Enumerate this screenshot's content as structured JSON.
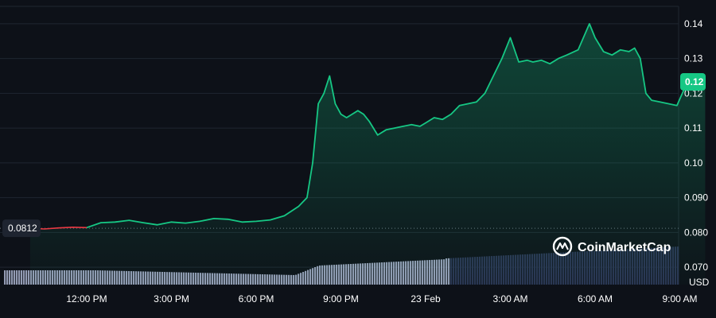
{
  "brand": {
    "name": "CoinMarketCap",
    "icon": "coinmarketcap-logo-icon"
  },
  "colors": {
    "background": "#0d1118",
    "price_up": "#16c784",
    "price_down": "#ea3943",
    "volume_past": "#aab4cf",
    "volume_recent": "#2a3452",
    "grid": "#1f2630"
  },
  "chart_data": {
    "type": "area",
    "title": "",
    "xlabel": "",
    "ylabel": "USD",
    "ylim": [
      0.065,
      0.145
    ],
    "yticks": [
      "0.070",
      "0.080",
      "0.090",
      "0.10",
      "0.11",
      "0.12",
      "0.13",
      "0.14"
    ],
    "xticks": [
      "12:00 PM",
      "3:00 PM",
      "6:00 PM",
      "9:00 PM",
      "23 Feb",
      "3:00 AM",
      "6:00 AM",
      "9:00 AM"
    ],
    "grid": true,
    "open_price_label": "0.0812",
    "open_price": 0.0812,
    "current_price_label": "0.12",
    "current_price": 0.1233,
    "series": [
      {
        "t": [
          -2.0,
          -1.5,
          -1.0,
          -0.5,
          0.0,
          0.5,
          1.0,
          1.5,
          2.0,
          2.5,
          3.0,
          3.5,
          4.0,
          4.5,
          5.0,
          5.5,
          6.0,
          6.5,
          7.0,
          7.5,
          7.8,
          8.0,
          8.2,
          8.4,
          8.6,
          8.8,
          9.0,
          9.2,
          9.4,
          9.6,
          9.8,
          10.0,
          10.3,
          10.6,
          10.9,
          11.2,
          11.5,
          11.8,
          12.0,
          12.3,
          12.6,
          12.9,
          13.2,
          13.5,
          13.8,
          14.1,
          14.4,
          14.7,
          15.0,
          15.3,
          15.6,
          15.8,
          16.1,
          16.4,
          16.7,
          17.0,
          17.4,
          17.8,
          18.0,
          18.3,
          18.6,
          18.9,
          19.2,
          19.4,
          19.6,
          19.8,
          20.0,
          20.3,
          20.6,
          20.9,
          21.2,
          21.5,
          21.9
        ],
        "y": [
          0.0812,
          0.081,
          0.0813,
          0.0815,
          0.0814,
          0.0828,
          0.083,
          0.0835,
          0.0828,
          0.0822,
          0.083,
          0.0827,
          0.0832,
          0.084,
          0.0838,
          0.083,
          0.0832,
          0.0836,
          0.0848,
          0.0875,
          0.09,
          0.1,
          0.117,
          0.12,
          0.125,
          0.117,
          0.114,
          0.113,
          0.114,
          0.115,
          0.114,
          0.112,
          0.108,
          0.1095,
          0.11,
          0.1105,
          0.111,
          0.1105,
          0.1115,
          0.113,
          0.1125,
          0.114,
          0.1165,
          0.117,
          0.1175,
          0.12,
          0.125,
          0.13,
          0.136,
          0.129,
          0.1295,
          0.129,
          0.1295,
          0.1285,
          0.13,
          0.131,
          0.1325,
          0.14,
          0.136,
          0.132,
          0.131,
          0.1325,
          0.132,
          0.133,
          0.13,
          0.12,
          0.118,
          0.1175,
          0.117,
          0.1165,
          0.122,
          0.1235,
          0.1233
        ]
      }
    ]
  }
}
